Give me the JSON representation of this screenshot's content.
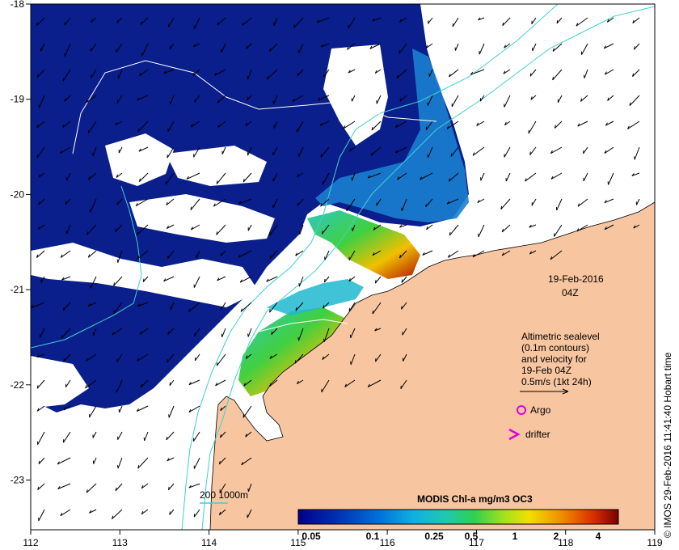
{
  "map": {
    "x_ticks": [
      "112",
      "113",
      "114",
      "115",
      "116",
      "117",
      "118",
      "119"
    ],
    "y_ticks": [
      "-18",
      "-19",
      "-20",
      "-21",
      "-22",
      "-23"
    ],
    "date_text": "19-Feb-2016",
    "time_text": "04Z",
    "legend_lines": [
      "Altimetric sealevel",
      "(0.1m contours)",
      "and velocity for",
      "19-Feb 04Z",
      "0.5m/s (1kt 24h)"
    ],
    "argo_label": "Argo",
    "drifter_label": "drifter",
    "isobath_label": "200  1000m",
    "credit": "© IMOS 29-Feb-2016 11:41:40 Hobart time",
    "colors": {
      "land": "#F7C59F",
      "ocean_low": "#0A1E8C",
      "isobath": "#40D0D0",
      "argo": "#E000E0"
    }
  },
  "colorbar": {
    "title": "MODIS Chl-a mg/m3 OC3",
    "ticks": [
      "0.05",
      "0.1",
      "0.25",
      "0.5",
      "1",
      "2",
      "4"
    ],
    "colors": [
      "#00008A",
      "#0040C0",
      "#0090E0",
      "#20C0D0",
      "#30D060",
      "#A0E020",
      "#F0E000",
      "#F0A000",
      "#E05000",
      "#C01000",
      "#7A0000"
    ]
  }
}
